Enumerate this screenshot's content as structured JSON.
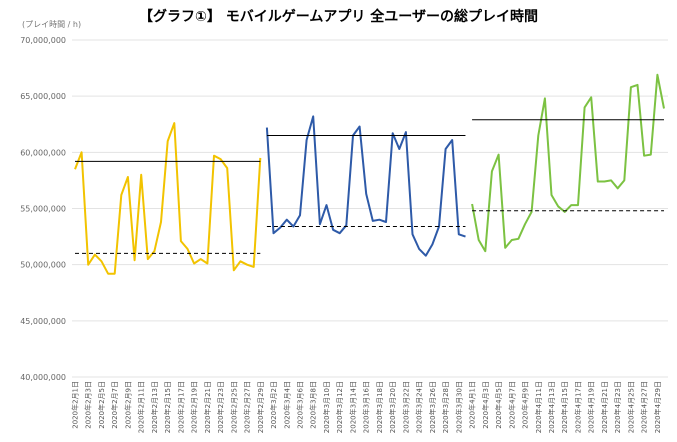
{
  "chart_data": {
    "type": "line",
    "title": "【グラフ①】 モバイルゲームアプリ 全ユーザーの総プレイ時間",
    "ylabel": "(プレイ時間 / h)",
    "ylim": [
      40000000,
      70000000
    ],
    "y_ticks": [
      "40,000,000",
      "45,000,000",
      "50,000,000",
      "55,000,000",
      "60,000,000",
      "65,000,000",
      "70,000,000"
    ],
    "y_tick_values": [
      40000000,
      45000000,
      50000000,
      55000000,
      60000000,
      65000000,
      70000000
    ],
    "grid": "horizontal",
    "x_tick_labels": [
      "2020年2月1日",
      "2020年2月3日",
      "2020年2月5日",
      "2020年2月7日",
      "2020年2月9日",
      "2020年2月11日",
      "2020年2月13日",
      "2020年2月15日",
      "2020年2月17日",
      "2020年2月19日",
      "2020年2月21日",
      "2020年2月23日",
      "2020年2月25日",
      "2020年2月27日",
      "2020年2月29日",
      "2020年3月2日",
      "2020年3月4日",
      "2020年3月6日",
      "2020年3月8日",
      "2020年3月10日",
      "2020年3月12日",
      "2020年3月14日",
      "2020年3月16日",
      "2020年3月18日",
      "2020年3月20日",
      "2020年3月22日",
      "2020年3月24日",
      "2020年3月26日",
      "2020年3月28日",
      "2020年3月30日",
      "2020年4月1日",
      "2020年4月3日",
      "2020年4月5日",
      "2020年4月7日",
      "2020年4月9日",
      "2020年4月11日",
      "2020年4月13日",
      "2020年4月15日",
      "2020年4月17日",
      "2020年4月19日",
      "2020年4月21日",
      "2020年4月23日",
      "2020年4月25日",
      "2020年4月27日",
      "2020年4月29日"
    ],
    "series": [
      {
        "color": "#f2c300",
        "x_start": "2020-02-01",
        "values": [
          58500000,
          60000000,
          50000000,
          50900000,
          50300000,
          49200000,
          49200000,
          56200000,
          57800000,
          50400000,
          58000000,
          50500000,
          51200000,
          53800000,
          61000000,
          62600000,
          52100000,
          51400000,
          50100000,
          50500000,
          50100000,
          59700000,
          59400000,
          58600000,
          49500000,
          50300000,
          50000000,
          49800000,
          59500000
        ],
        "max_line": 59200000,
        "min_line": 51000000
      },
      {
        "color": "#2e5aa8",
        "x_start": "2020-03-01",
        "values": [
          62200000,
          52800000,
          53300000,
          54000000,
          53400000,
          54400000,
          61100000,
          63200000,
          53600000,
          55300000,
          53100000,
          52800000,
          53500000,
          61500000,
          62300000,
          56300000,
          53900000,
          54000000,
          53800000,
          61700000,
          60300000,
          61800000,
          52700000,
          51400000,
          50800000,
          51800000,
          53400000,
          60300000,
          61100000,
          52700000,
          52500000
        ],
        "max_line": 61500000,
        "min_line": 53400000
      },
      {
        "color": "#7cc242",
        "x_start": "2020-04-01",
        "values": [
          55400000,
          52200000,
          51200000,
          58300000,
          59800000,
          51500000,
          52200000,
          52300000,
          53600000,
          54700000,
          61500000,
          64800000,
          56200000,
          55200000,
          54700000,
          55300000,
          55300000,
          64000000,
          64900000,
          57400000,
          57400000,
          57500000,
          56800000,
          57500000,
          65800000,
          66000000,
          59700000,
          59800000,
          66900000,
          63900000
        ],
        "max_line": 62900000,
        "min_line": 54800000
      }
    ]
  }
}
